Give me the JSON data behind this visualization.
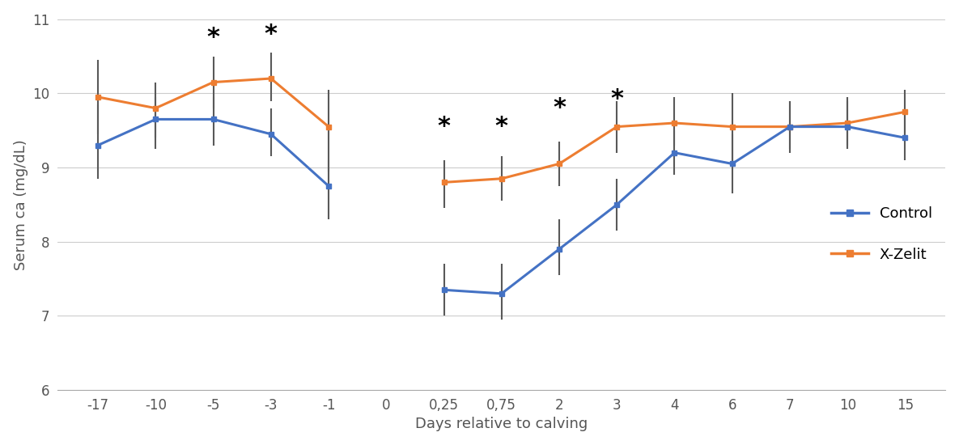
{
  "x_labels": [
    "-17",
    "-10",
    "-5",
    "-3",
    "-1",
    "0",
    "0,25",
    "0,75",
    "2",
    "3",
    "4",
    "6",
    "7",
    "10",
    "15"
  ],
  "x_positions": [
    0,
    1,
    2,
    3,
    4,
    5,
    6,
    7,
    8,
    9,
    10,
    11,
    12,
    13,
    14
  ],
  "control_y": [
    9.3,
    9.65,
    9.65,
    9.45,
    8.75,
    null,
    7.35,
    7.3,
    7.9,
    8.5,
    9.2,
    9.05,
    9.55,
    9.55,
    9.4
  ],
  "control_yerr_lo": [
    0.45,
    0.4,
    0.35,
    0.3,
    0.45,
    null,
    0.35,
    0.35,
    0.35,
    0.35,
    0.3,
    0.4,
    0.3,
    0.3,
    0.3
  ],
  "control_yerr_hi": [
    0.55,
    0.3,
    0.3,
    0.35,
    0.35,
    null,
    0.35,
    0.4,
    0.4,
    0.35,
    0.3,
    0.4,
    0.35,
    0.35,
    0.35
  ],
  "xzelit_y": [
    9.95,
    9.8,
    10.15,
    10.2,
    9.55,
    null,
    8.8,
    8.85,
    9.05,
    9.55,
    9.6,
    9.55,
    9.55,
    9.6,
    9.75
  ],
  "xzelit_yerr_lo": [
    0.5,
    0.4,
    0.35,
    0.3,
    0.6,
    null,
    0.35,
    0.3,
    0.3,
    0.35,
    0.3,
    0.45,
    0.35,
    0.3,
    0.3
  ],
  "xzelit_yerr_hi": [
    0.5,
    0.35,
    0.35,
    0.35,
    0.5,
    null,
    0.3,
    0.3,
    0.3,
    0.35,
    0.35,
    0.45,
    0.35,
    0.35,
    0.3
  ],
  "sig_x_indices": [
    2,
    3,
    6,
    7,
    8,
    9
  ],
  "sig_y_vals": [
    10.75,
    10.8,
    9.55,
    9.55,
    9.8,
    9.92
  ],
  "control_color": "#4472C4",
  "xzelit_color": "#ED7D31",
  "errorbar_color": "#595959",
  "xlabel": "Days relative to calving",
  "ylabel": "Serum ca (mg/dL)",
  "ylim": [
    6,
    11
  ],
  "yticks": [
    6,
    7,
    8,
    9,
    10,
    11
  ],
  "figsize": [
    11.85,
    5.5
  ],
  "dpi": 100
}
